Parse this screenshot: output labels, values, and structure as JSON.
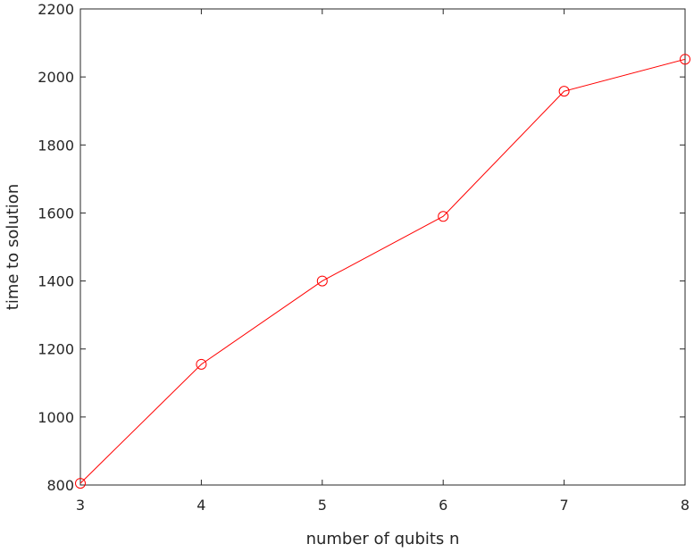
{
  "chart_data": {
    "type": "line",
    "title": "",
    "xlabel": "number of qubits n",
    "ylabel": "time to solution",
    "xlim": [
      3,
      8
    ],
    "ylim": [
      800,
      2200
    ],
    "xticks": [
      3,
      4,
      5,
      6,
      7,
      8
    ],
    "yticks": [
      800,
      1000,
      1200,
      1400,
      1600,
      1800,
      2000,
      2200
    ],
    "grid": false,
    "legend": "none",
    "series": [
      {
        "color": "#ff0000",
        "marker": "circle",
        "x": [
          3,
          4,
          5,
          6,
          7,
          8
        ],
        "y": [
          805,
          1155,
          1400,
          1590,
          1958,
          2052
        ]
      }
    ]
  }
}
